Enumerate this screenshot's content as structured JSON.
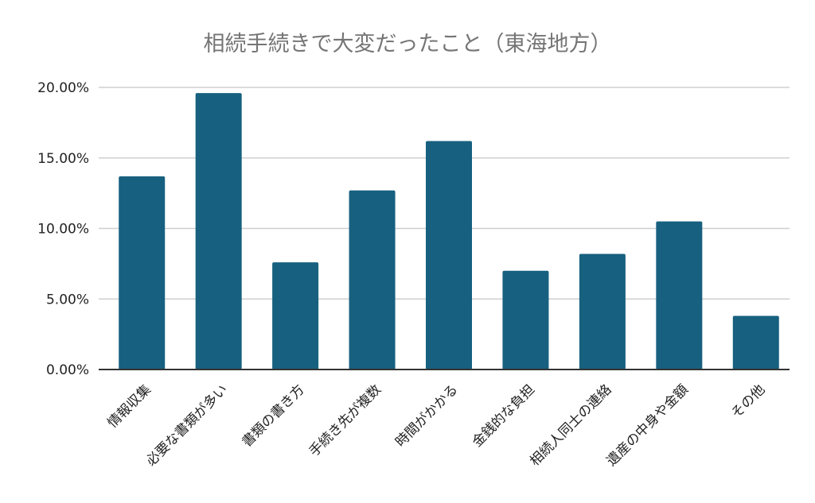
{
  "chart_data": {
    "type": "bar",
    "title": "相続手続きで大変だったこと（東海地方）",
    "xlabel": "",
    "ylabel": "",
    "categories": [
      "情報収集",
      "必要な書類が多い",
      "書類の書き方",
      "手続き先が複数",
      "時間がかかる",
      "金銭的な負担",
      "相続人同士の連絡",
      "遺産の中身や金額",
      "その他"
    ],
    "series": [
      {
        "values": [
          13.7,
          19.6,
          7.6,
          12.7,
          16.2,
          7.0,
          8.2,
          10.5,
          3.8
        ]
      }
    ],
    "ylim": [
      0,
      20
    ],
    "yticks": [
      0,
      5,
      10,
      15,
      20
    ],
    "ytick_labels": [
      "0.00%",
      "5.00%",
      "10.00%",
      "15.00%",
      "20.00%"
    ],
    "grid": true,
    "legend": "none",
    "bar_color": "#17607f"
  }
}
